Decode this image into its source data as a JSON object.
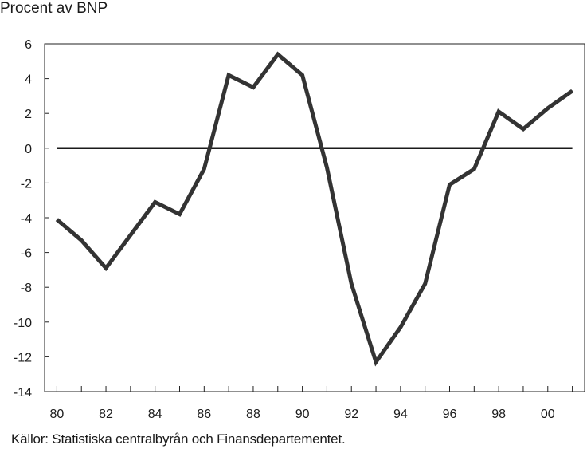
{
  "chart_data": {
    "type": "line",
    "title": "",
    "ylabel": "Procent av BNP",
    "xlabel": "",
    "source": "Källor: Statistiska centralbyrån och Finansdepartementet.",
    "xlim": [
      1979.5,
      2001.5
    ],
    "ylim": [
      -14,
      6
    ],
    "x_ticks": [
      1980,
      1982,
      1984,
      1986,
      1988,
      1990,
      1992,
      1994,
      1996,
      1998,
      2000
    ],
    "x_tick_labels": [
      "80",
      "82",
      "84",
      "86",
      "88",
      "90",
      "92",
      "94",
      "96",
      "98",
      "00"
    ],
    "y_ticks": [
      6,
      4,
      2,
      0,
      -2,
      -4,
      -6,
      -8,
      -10,
      -12,
      -14
    ],
    "y_tick_labels": [
      "6",
      "4",
      "2",
      "0",
      "-2",
      "-4",
      "-6",
      "-8",
      "-10",
      "-12",
      "-14"
    ],
    "reference_line_y": 0,
    "grid": false,
    "series": [
      {
        "color": "#333333",
        "x": [
          1980,
          1981,
          1982,
          1983,
          1984,
          1985,
          1986,
          1987,
          1988,
          1989,
          1990,
          1991,
          1992,
          1993,
          1994,
          1995,
          1996,
          1997,
          1998,
          1999,
          2000,
          2001
        ],
        "values": [
          -4.1,
          -5.3,
          -6.9,
          -5.0,
          -3.1,
          -3.8,
          -1.2,
          4.2,
          3.5,
          5.4,
          4.2,
          -1.1,
          -7.8,
          -12.3,
          -10.3,
          -7.8,
          -2.1,
          -1.2,
          2.1,
          1.1,
          2.3,
          3.3
        ]
      }
    ]
  }
}
